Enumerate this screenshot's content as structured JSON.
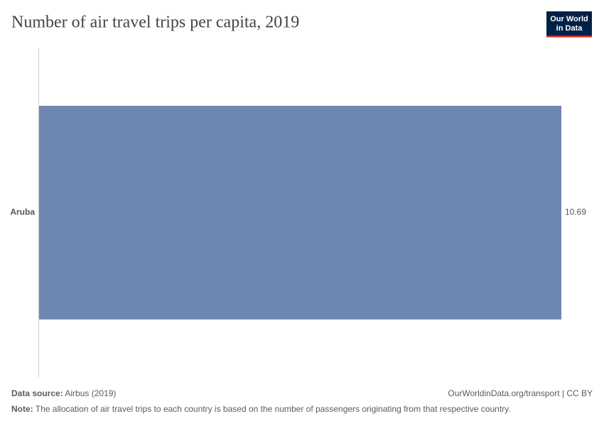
{
  "chart_data": {
    "type": "hbar",
    "title": "Number of air travel trips per capita, 2019",
    "categories": [
      "Aruba"
    ],
    "values": [
      10.69
    ],
    "color": "#6e87b0"
  },
  "logo": {
    "line1": "Our World",
    "line2": "in Data"
  },
  "footer": {
    "source_label": "Data source:",
    "source": "Airbus (2019)",
    "url": "OurWorldinData.org/transport | CC BY",
    "note_label": "Note:",
    "note": "The allocation of air travel trips to each country is based on the number of passengers originating from that respective country."
  }
}
